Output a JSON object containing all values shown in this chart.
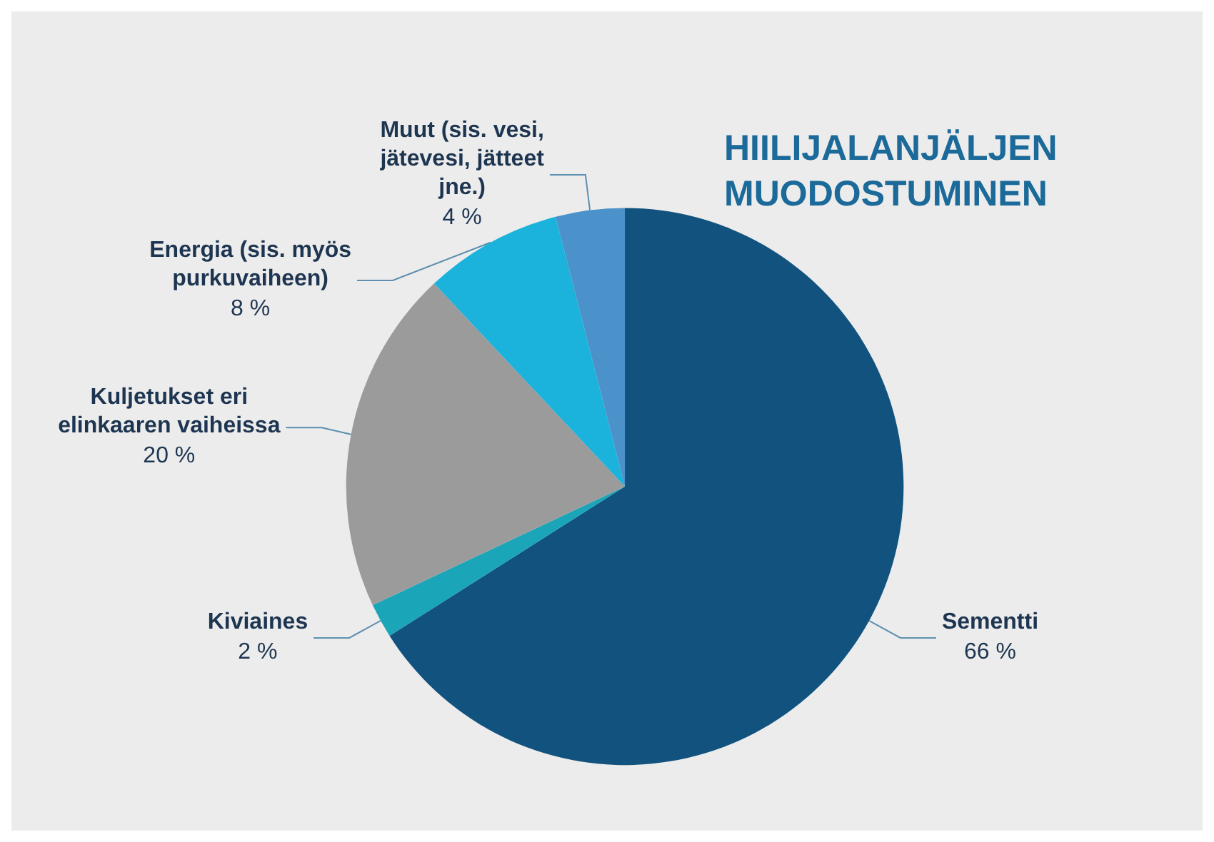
{
  "chart_data": {
    "type": "pie",
    "title": "HIILIJALANJÄLJEN MUODOSTUMINEN",
    "categories": [
      "Sementti",
      "Kiviaines",
      "Kuljetukset eri elinkaaren vaiheissa",
      "Energia (sis. myös purkuvaiheen)",
      "Muut (sis. vesi, jätevesi, jätteet jne.)"
    ],
    "values": [
      66,
      2,
      20,
      8,
      4
    ],
    "value_labels": [
      "66 %",
      "2 %",
      "20 %",
      "8 %",
      "4 %"
    ],
    "colors": [
      "#11527e",
      "#1aa5b8",
      "#9b9b9b",
      "#1bb2dc",
      "#4a92c9"
    ]
  }
}
